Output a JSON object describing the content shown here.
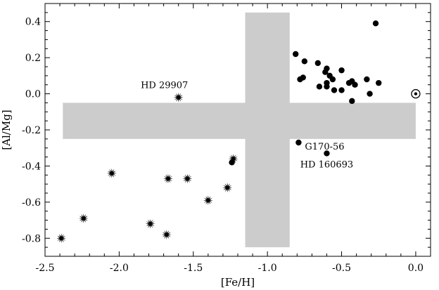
{
  "chart_data": {
    "type": "scatter",
    "xlabel": "[Fe/H]",
    "ylabel": "[Al/Mg]",
    "xlim": [
      -2.5,
      0.1
    ],
    "ylim": [
      -0.9,
      0.5
    ],
    "xticks": [
      -2.5,
      -2.0,
      -1.5,
      -1.0,
      -0.5,
      0.0
    ],
    "xtick_labels": [
      "-2.5",
      "-2.0",
      "-1.5",
      "-1.0",
      "-0.5",
      "0.0"
    ],
    "xminor_step": 0.1,
    "yticks": [
      -0.8,
      -0.6,
      -0.4,
      -0.2,
      0.0,
      0.2,
      0.4
    ],
    "ytick_labels": [
      "-0.8",
      "-0.6",
      "-0.4",
      "-0.2",
      "0.0",
      "0.2",
      "0.4"
    ],
    "yminor_step": 0.05,
    "grid": false,
    "shaded_regions": [
      {
        "x": [
          -2.38,
          0.0
        ],
        "y": [
          -0.25,
          -0.05
        ],
        "color": "#cccccc"
      },
      {
        "x": [
          -1.15,
          -0.85
        ],
        "y": [
          -0.85,
          0.45
        ],
        "color": "#cccccc"
      }
    ],
    "series": [
      {
        "marker": "starburst",
        "points": [
          {
            "x": -2.39,
            "y": -0.8
          },
          {
            "x": -2.24,
            "y": -0.69
          },
          {
            "x": -2.05,
            "y": -0.44
          },
          {
            "x": -1.79,
            "y": -0.72
          },
          {
            "x": -1.67,
            "y": -0.47
          },
          {
            "x": -1.68,
            "y": -0.78
          },
          {
            "x": -1.6,
            "y": -0.02
          },
          {
            "x": -1.54,
            "y": -0.47
          },
          {
            "x": -1.4,
            "y": -0.59
          },
          {
            "x": -1.27,
            "y": -0.52
          },
          {
            "x": -1.23,
            "y": -0.36
          }
        ]
      },
      {
        "marker": "circle",
        "points": [
          {
            "x": -1.24,
            "y": -0.38
          },
          {
            "x": -0.79,
            "y": -0.27
          },
          {
            "x": -0.6,
            "y": -0.33
          },
          {
            "x": -0.81,
            "y": 0.22
          },
          {
            "x": -0.75,
            "y": 0.18
          },
          {
            "x": -0.78,
            "y": 0.08
          },
          {
            "x": -0.76,
            "y": 0.09
          },
          {
            "x": -0.66,
            "y": 0.17
          },
          {
            "x": -0.65,
            "y": 0.04
          },
          {
            "x": -0.61,
            "y": 0.12
          },
          {
            "x": -0.6,
            "y": 0.14
          },
          {
            "x": -0.58,
            "y": 0.1
          },
          {
            "x": -0.56,
            "y": 0.08
          },
          {
            "x": -0.6,
            "y": 0.06
          },
          {
            "x": -0.6,
            "y": 0.04
          },
          {
            "x": -0.55,
            "y": 0.02
          },
          {
            "x": -0.5,
            "y": 0.13
          },
          {
            "x": -0.5,
            "y": 0.02
          },
          {
            "x": -0.45,
            "y": 0.06
          },
          {
            "x": -0.43,
            "y": 0.07
          },
          {
            "x": -0.41,
            "y": 0.05
          },
          {
            "x": -0.43,
            "y": -0.04
          },
          {
            "x": -0.33,
            "y": 0.08
          },
          {
            "x": -0.31,
            "y": 0.0
          },
          {
            "x": -0.27,
            "y": 0.39
          },
          {
            "x": -0.25,
            "y": 0.06
          }
        ]
      }
    ],
    "sun_symbol": {
      "x": 0.0,
      "y": 0.0
    },
    "annotations": [
      {
        "text": "HD 29907",
        "x": -1.6,
        "y": -0.02
      },
      {
        "text": "G170-56",
        "x": -0.79,
        "y": -0.27
      },
      {
        "text": "HD 160693",
        "x": -0.6,
        "y": -0.33
      }
    ]
  }
}
